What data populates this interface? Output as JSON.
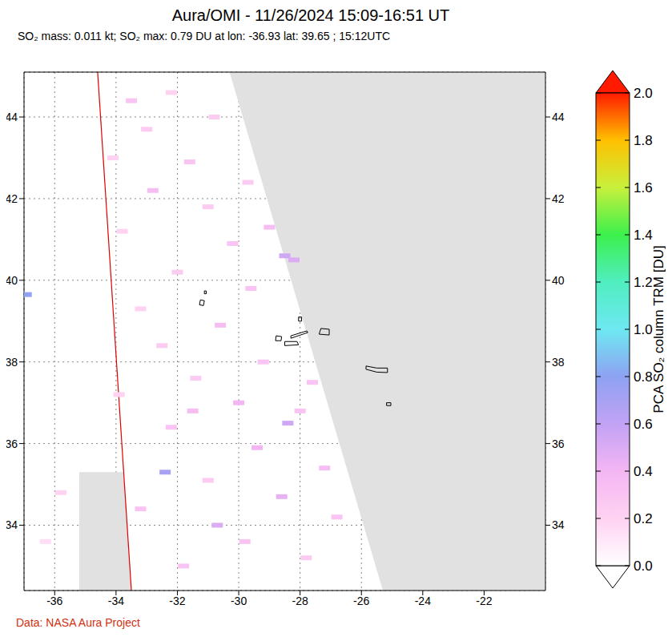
{
  "chart_data": {
    "type": "heatmap",
    "title": "Aura/OMI - 11/26/2024 15:09-16:51 UT",
    "subtitle": "SO₂ mass: 0.011 kt; SO₂ max: 0.79 DU at lon: -36.93 lat: 39.65 ; 15:12UTC",
    "annotations": [
      "Data: NASA Aura Project"
    ],
    "xlim": [
      -37,
      -20
    ],
    "xticks": [
      -36,
      -34,
      -32,
      -30,
      -28,
      -26,
      -24,
      -22
    ],
    "ylim": [
      32.4,
      45.1
    ],
    "yticks": [
      34,
      36,
      38,
      40,
      42,
      44
    ],
    "grid": true,
    "colorbar": {
      "label": "PCA SO₂ column TRM [DU]",
      "range": [
        0,
        2
      ],
      "ticks": [
        {
          "value": 0,
          "label": "0.0"
        },
        {
          "value": 0.2,
          "label": "0.2"
        },
        {
          "value": 0.4,
          "label": "0.4"
        },
        {
          "value": 0.6,
          "label": "0.6"
        },
        {
          "value": 0.8,
          "label": "0.8"
        },
        {
          "value": 1,
          "label": "1.0"
        },
        {
          "value": 1.2,
          "label": "1.2"
        },
        {
          "value": 1.4,
          "label": "1.4"
        },
        {
          "value": 1.6,
          "label": "1.6"
        },
        {
          "value": 1.8,
          "label": "1.8"
        },
        {
          "value": 2,
          "label": "2.0"
        }
      ]
    },
    "no_data_regions": [
      {
        "x": [
          -30.3,
          -25.3,
          -20
        ],
        "low": [
          45.1,
          32.4,
          32.4
        ],
        "high": [
          45.1,
          45.1,
          45.1
        ]
      },
      {
        "x": [
          -35.2,
          -33.75,
          -33.5
        ],
        "low": [
          32.4,
          32.4,
          32.4
        ],
        "high": [
          35.3,
          35.3,
          32.4
        ]
      }
    ],
    "orbit_track": {
      "x": [
        -34.6,
        -33.5
      ],
      "y": [
        45.1,
        32.4
      ]
    },
    "coastlines": [
      [
        [
          -31.28,
          39.4
        ],
        [
          -31.15,
          39.38
        ],
        [
          -31.12,
          39.5
        ],
        [
          -31.25,
          39.52
        ],
        [
          -31.28,
          39.4
        ]
      ],
      [
        [
          -31.12,
          39.67
        ],
        [
          -31.06,
          39.67
        ],
        [
          -31.06,
          39.74
        ],
        [
          -31.12,
          39.74
        ],
        [
          -31.12,
          39.67
        ]
      ],
      [
        [
          -28.8,
          38.52
        ],
        [
          -28.62,
          38.52
        ],
        [
          -28.6,
          38.62
        ],
        [
          -28.78,
          38.64
        ],
        [
          -28.8,
          38.52
        ]
      ],
      [
        [
          -28.5,
          38.4
        ],
        [
          -28.05,
          38.42
        ],
        [
          -28.1,
          38.5
        ],
        [
          -28.5,
          38.5
        ],
        [
          -28.5,
          38.4
        ]
      ],
      [
        [
          -28.3,
          38.58
        ],
        [
          -27.75,
          38.72
        ],
        [
          -27.78,
          38.76
        ],
        [
          -28.3,
          38.64
        ],
        [
          -28.3,
          38.58
        ]
      ],
      [
        [
          -28.05,
          39.0
        ],
        [
          -27.95,
          39.0
        ],
        [
          -27.95,
          39.1
        ],
        [
          -28.05,
          39.1
        ],
        [
          -28.05,
          39.0
        ]
      ],
      [
        [
          -27.38,
          38.68
        ],
        [
          -27.05,
          38.66
        ],
        [
          -27.05,
          38.8
        ],
        [
          -27.32,
          38.82
        ],
        [
          -27.38,
          38.68
        ]
      ],
      [
        [
          -25.85,
          37.82
        ],
        [
          -25.5,
          37.75
        ],
        [
          -25.15,
          37.74
        ],
        [
          -25.15,
          37.85
        ],
        [
          -25.5,
          37.85
        ],
        [
          -25.85,
          37.9
        ],
        [
          -25.85,
          37.82
        ]
      ],
      [
        [
          -25.18,
          36.93
        ],
        [
          -25.04,
          36.93
        ],
        [
          -25.04,
          37.0
        ],
        [
          -25.18,
          37.0
        ],
        [
          -25.18,
          36.93
        ]
      ]
    ],
    "cells": [
      [
        -36.93,
        39.65,
        0.79
      ],
      [
        -32.4,
        35.3,
        0.7
      ],
      [
        -28.5,
        40.6,
        0.55
      ],
      [
        -28.2,
        40.5,
        0.5
      ],
      [
        -28.4,
        36.5,
        0.55
      ],
      [
        -30.7,
        34.0,
        0.5
      ],
      [
        -29.0,
        41.3,
        0.35
      ],
      [
        -33.5,
        44.4,
        0.3
      ],
      [
        -33.0,
        43.7,
        0.25
      ],
      [
        -31.6,
        42.9,
        0.3
      ],
      [
        -32.8,
        42.2,
        0.35
      ],
      [
        -31.0,
        41.8,
        0.25
      ],
      [
        -33.8,
        41.2,
        0.2
      ],
      [
        -30.2,
        40.9,
        0.3
      ],
      [
        -32.0,
        40.2,
        0.25
      ],
      [
        -29.6,
        39.8,
        0.3
      ],
      [
        -33.2,
        39.3,
        0.2
      ],
      [
        -30.6,
        38.9,
        0.35
      ],
      [
        -32.5,
        38.4,
        0.25
      ],
      [
        -29.2,
        38.0,
        0.3
      ],
      [
        -31.4,
        37.6,
        0.25
      ],
      [
        -33.9,
        37.2,
        0.2
      ],
      [
        -30.0,
        37.0,
        0.4
      ],
      [
        -28.0,
        36.8,
        0.3
      ],
      [
        -32.2,
        36.4,
        0.3
      ],
      [
        -29.4,
        35.9,
        0.4
      ],
      [
        -27.2,
        35.4,
        0.35
      ],
      [
        -31.0,
        35.1,
        0.25
      ],
      [
        -28.6,
        34.7,
        0.45
      ],
      [
        -33.2,
        34.4,
        0.3
      ],
      [
        -29.8,
        33.6,
        0.3
      ],
      [
        -27.8,
        33.2,
        0.25
      ],
      [
        -31.8,
        33.0,
        0.3
      ],
      [
        -35.8,
        34.8,
        0.2
      ],
      [
        -36.3,
        33.6,
        0.15
      ],
      [
        -30.8,
        44.0,
        0.25
      ],
      [
        -32.2,
        44.6,
        0.2
      ],
      [
        -34.1,
        43.0,
        0.2
      ],
      [
        -29.7,
        42.4,
        0.25
      ],
      [
        -31.5,
        36.8,
        0.35
      ],
      [
        -27.6,
        37.5,
        0.3
      ],
      [
        -26.8,
        34.2,
        0.3
      ]
    ]
  }
}
